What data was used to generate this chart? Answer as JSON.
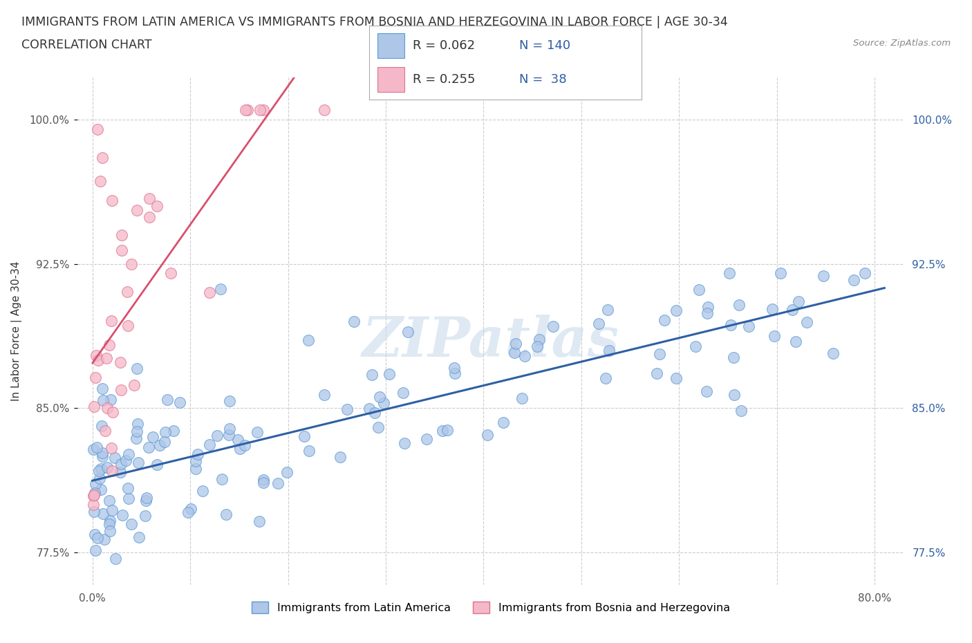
{
  "title_line1": "IMMIGRANTS FROM LATIN AMERICA VS IMMIGRANTS FROM BOSNIA AND HERZEGOVINA IN LABOR FORCE | AGE 30-34",
  "title_line2": "CORRELATION CHART",
  "source": "Source: ZipAtlas.com",
  "ylabel": "In Labor Force | Age 30-34",
  "x_ticks": [
    0.0,
    10.0,
    20.0,
    30.0,
    40.0,
    50.0,
    60.0,
    70.0,
    80.0
  ],
  "y_ticks": [
    0.775,
    0.85,
    0.925,
    1.0
  ],
  "y_tick_labels": [
    "77.5%",
    "85.0%",
    "92.5%",
    "100.0%"
  ],
  "xlim": [
    -1.5,
    83
  ],
  "ylim": [
    0.758,
    1.022
  ],
  "series1_color": "#aec6e8",
  "series1_edge": "#5b9bd5",
  "series2_color": "#f4b8c8",
  "series2_edge": "#e07090",
  "trend1_color": "#2e5fa3",
  "trend2_color": "#d94f6e",
  "legend_label1": "Immigrants from Latin America",
  "legend_label2": "Immigrants from Bosnia and Herzegovina",
  "watermark": "ZIPatlas",
  "grid_color": "#cccccc",
  "background": "#ffffff",
  "seed": 42
}
